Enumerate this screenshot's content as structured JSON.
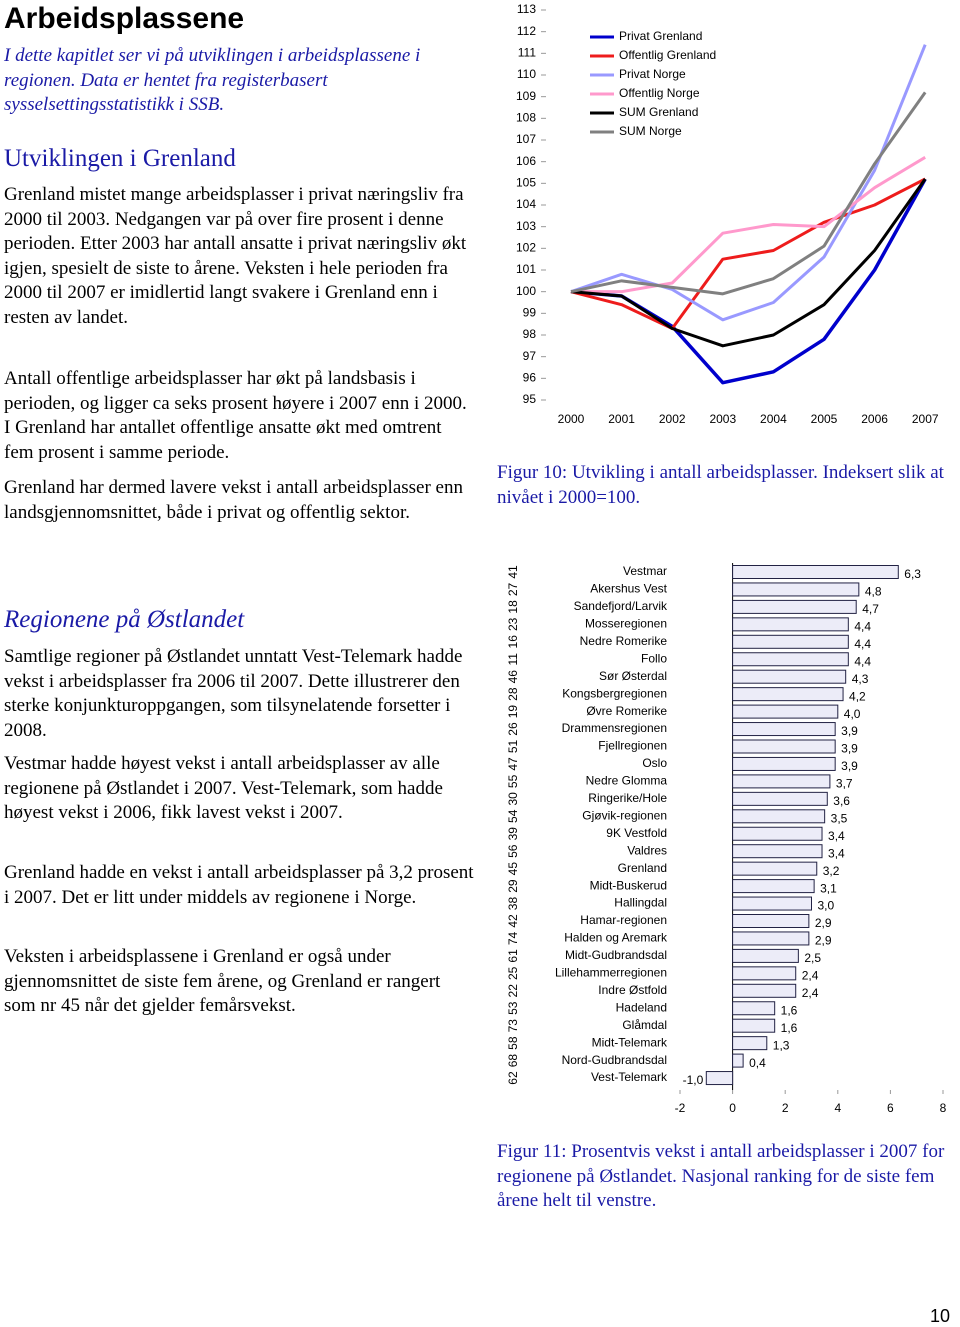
{
  "document": {
    "title": "Arbeidsplassene",
    "intro": "I dette kapitlet ser vi på utviklingen i arbeidsplassene i regionen. Data er hentet fra registerbasert sysselsettingsstatistikk i SSB.",
    "headings": [
      "Utviklingen i Grenland",
      "Regionene på Østlandet"
    ],
    "paragraphs": [
      "Grenland mistet mange arbeidsplasser i privat næringsliv fra 2000 til 2003. Nedgangen var på over fire prosent i denne perioden. Etter 2003 har antall ansatte i privat næringsliv økt igjen, spesielt de siste to årene. Veksten i hele perioden fra 2000 til 2007 er imidlertid langt svakere i Grenland enn i resten av landet.",
      "Antall offentlige arbeidsplasser har økt på landsbasis i perioden, og ligger ca seks prosent høyere i 2007 enn i 2000. I Grenland har antallet offentlige ansatte økt med omtrent fem prosent i samme periode.",
      "Grenland har dermed lavere vekst i antall arbeidsplasser enn landsgjennomsnittet, både i privat og offentlig sektor.",
      "Samtlige regioner på Østlandet unntatt Vest-Telemark hadde vekst i arbeidsplasser fra 2006 til 2007. Dette illustrerer den sterke konjunkturoppgangen, som tilsynelatende forsetter i 2008.",
      "Vestmar hadde høyest vekst i antall arbeidsplasser av alle regionene på Østlandet i 2007. Vest-Telemark, som hadde høyest vekst i 2006, fikk lavest vekst i 2007.",
      "Grenland hadde en vekst i antall arbeidsplasser på 3,2 prosent i 2007. Det er litt under middels av regionene i Norge.",
      "Veksten i arbeidsplassene i Grenland er også under gjennomsnittet de siste fem årene, og Grenland er rangert som nr 45 når det gjelder femårsvekst."
    ],
    "captions": [
      "Figur 10: Utvikling i antall arbeidsplasser. Indeksert slik at nivået i 2000=100.",
      "Figur 11: Prosentvis vekst i antall arbeidsplasser i 2007 for regionene på Østlandet. Nasjonal ranking for de siste fem årene helt til venstre."
    ],
    "page_number": 10
  },
  "chart_data": [
    {
      "type": "line",
      "categories": [
        "2000",
        "2001",
        "2002",
        "2003",
        "2004",
        "2005",
        "2006",
        "2007"
      ],
      "ylim": [
        95,
        113
      ],
      "yticks": [
        95,
        96,
        97,
        98,
        99,
        100,
        101,
        102,
        103,
        104,
        105,
        106,
        107,
        108,
        109,
        110,
        111,
        112,
        113
      ],
      "legend": "top",
      "series": [
        {
          "name": "Privat Grenland",
          "color": "#0000cc",
          "values": [
            100,
            99.8,
            98.4,
            95.8,
            96.3,
            97.8,
            101.0,
            105.2
          ]
        },
        {
          "name": "Offentlig Grenland",
          "color": "#ee1c1c",
          "values": [
            100,
            99.4,
            98.3,
            101.5,
            101.9,
            103.2,
            104.0,
            105.2
          ]
        },
        {
          "name": "Privat Norge",
          "color": "#9999ff",
          "values": [
            100,
            100.8,
            100.1,
            98.7,
            99.5,
            101.6,
            105.6,
            111.4
          ]
        },
        {
          "name": "Offentlig Norge",
          "color": "#ff99cc",
          "values": [
            100,
            100.0,
            100.4,
            102.7,
            103.1,
            103.0,
            104.8,
            106.2
          ]
        },
        {
          "name": "SUM Grenland",
          "color": "#000000",
          "values": [
            100,
            99.8,
            98.3,
            97.5,
            98.0,
            99.4,
            101.9,
            105.2
          ]
        },
        {
          "name": "SUM Norge",
          "color": "#808080",
          "values": [
            100,
            100.5,
            100.2,
            99.9,
            100.6,
            102.1,
            105.9,
            109.2
          ]
        }
      ]
    },
    {
      "type": "bar",
      "orientation": "horizontal",
      "color": "#ececf8",
      "categories": [
        "Vestmar",
        "Akershus Vest",
        "Sandefjord/Larvik",
        "Mosseregionen",
        "Nedre Romerike",
        "Follo",
        "Sør Østerdal",
        "Kongsbergregionen",
        "Øvre Romerike",
        "Drammensregionen",
        "Fjellregionen",
        "Oslo",
        "Nedre Glomma",
        "Ringerike/Hole",
        "Gjøvik-regionen",
        "9K Vestfold",
        "Valdres",
        "Grenland",
        "Midt-Buskerud",
        "Hallingdal",
        "Hamar-regionen",
        "Halden og Aremark",
        "Midt-Gudbrandsdal",
        "Lillehammerregionen",
        "Indre Østfold",
        "Hadeland",
        "Glåmdal",
        "Midt-Telemark",
        "Nord-Gudbrandsdal",
        "Vest-Telemark"
      ],
      "ranks": [
        41,
        27,
        18,
        23,
        16,
        11,
        46,
        28,
        19,
        26,
        51,
        47,
        55,
        30,
        54,
        39,
        56,
        45,
        29,
        38,
        42,
        74,
        61,
        25,
        22,
        53,
        73,
        58,
        68,
        62
      ],
      "values": [
        6.3,
        4.8,
        4.7,
        4.4,
        4.4,
        4.4,
        4.3,
        4.2,
        4.0,
        3.9,
        3.9,
        3.9,
        3.7,
        3.6,
        3.5,
        3.4,
        3.4,
        3.2,
        3.1,
        3.0,
        2.9,
        2.9,
        2.5,
        2.4,
        2.4,
        1.6,
        1.6,
        1.3,
        0.4,
        -1.0
      ],
      "value_labels": [
        "6,3",
        "4,8",
        "4,7",
        "4,4",
        "4,4",
        "4,4",
        "4,3",
        "4,2",
        "4,0",
        "3,9",
        "3,9",
        "3,9",
        "3,7",
        "3,6",
        "3,5",
        "3,4",
        "3,4",
        "3,2",
        "3,1",
        "3,0",
        "2,9",
        "2,9",
        "2,5",
        "2,4",
        "2,4",
        "1,6",
        "1,6",
        "1,3",
        "0,4",
        "-1,0"
      ],
      "xlim": [
        -2,
        8
      ],
      "xticks": [
        -2,
        0,
        2,
        4,
        6,
        8
      ]
    }
  ]
}
